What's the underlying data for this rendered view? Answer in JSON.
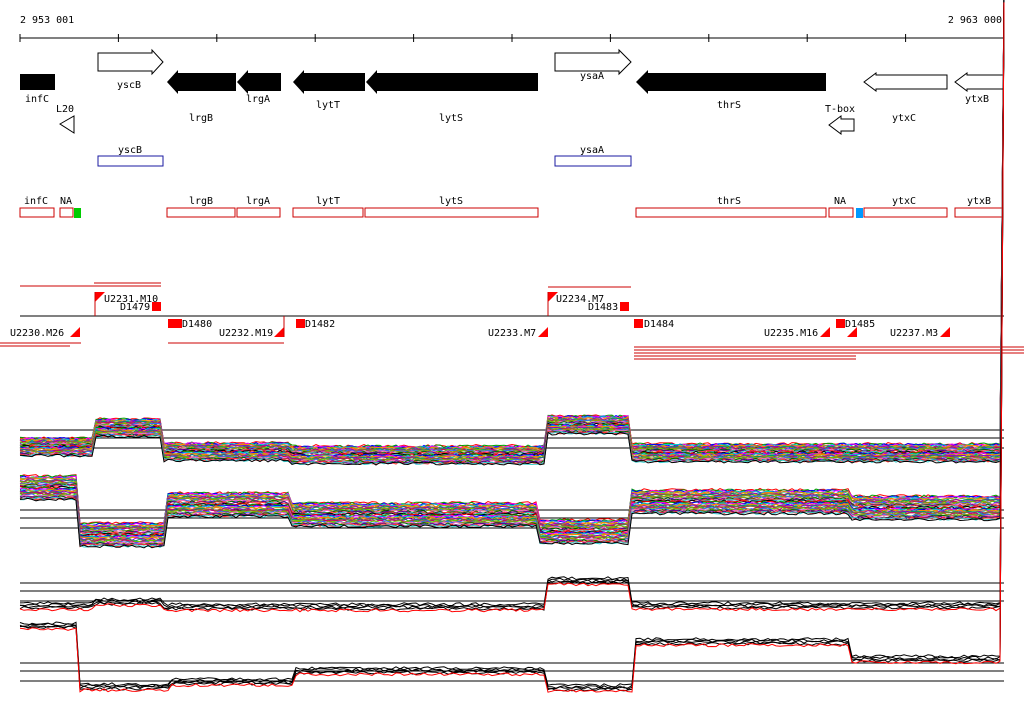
{
  "ruler": {
    "start_label": "2 953 001",
    "end_label": "2 963 000"
  },
  "genes_forward": [
    {
      "name": "yscB",
      "label": "yscB"
    },
    {
      "name": "ysaA",
      "label": "ysaA"
    }
  ],
  "genes_reverse": [
    {
      "name": "infC",
      "label": "infC",
      "style": "filled"
    },
    {
      "name": "lrgB",
      "label": "lrgB",
      "style": "filled"
    },
    {
      "name": "lrgA",
      "label": "lrgA",
      "style": "filled"
    },
    {
      "name": "lytT",
      "label": "lytT",
      "style": "filled"
    },
    {
      "name": "lytS",
      "label": "lytS",
      "style": "filled"
    },
    {
      "name": "thrS",
      "label": "thrS",
      "style": "filled"
    },
    {
      "name": "ytxC",
      "label": "ytxC",
      "style": "outline"
    },
    {
      "name": "ytxB",
      "label": "ytxB",
      "style": "outline"
    }
  ],
  "elements": [
    {
      "name": "L20",
      "label": "L20"
    },
    {
      "name": "T-box",
      "label": "T-box"
    }
  ],
  "blue_annotations": [
    {
      "name": "yscB",
      "label": "yscB"
    },
    {
      "name": "ysaA",
      "label": "ysaA"
    }
  ],
  "red_annotations": [
    {
      "name": "infC",
      "label": "infC"
    },
    {
      "name": "NA-1",
      "label": "NA"
    },
    {
      "name": "lrgB",
      "label": "lrgB"
    },
    {
      "name": "lrgA",
      "label": "lrgA"
    },
    {
      "name": "lytT",
      "label": "lytT"
    },
    {
      "name": "lytS",
      "label": "lytS"
    },
    {
      "name": "thrS",
      "label": "thrS"
    },
    {
      "name": "NA-2",
      "label": "NA"
    },
    {
      "name": "ytxC",
      "label": "ytxC"
    },
    {
      "name": "ytxB",
      "label": "ytxB"
    }
  ],
  "annotation_colors": {
    "red_box": "#cc0000",
    "blue_box": "#1a1aa0",
    "green_mark": "#00cc00",
    "cyan_mark": "#0099ff"
  },
  "transcription_units": [
    {
      "name": "U2230.M26",
      "label": "U2230.M26"
    },
    {
      "name": "U2231.M10",
      "label": "U2231.M10"
    },
    {
      "name": "U2232.M19",
      "label": "U2232.M19"
    },
    {
      "name": "U2233.M7",
      "label": "U2233.M7"
    },
    {
      "name": "U2234.M7",
      "label": "U2234.M7"
    },
    {
      "name": "U2235.M16",
      "label": "U2235.M16"
    },
    {
      "name": "U2237.M3",
      "label": "U2237.M3"
    }
  ],
  "downshifts": [
    {
      "name": "D1479",
      "label": "D1479"
    },
    {
      "name": "D1480",
      "label": "D1480"
    },
    {
      "name": "D1482",
      "label": "D1482"
    },
    {
      "name": "D1483",
      "label": "D1483"
    },
    {
      "name": "D1484",
      "label": "D1484"
    },
    {
      "name": "D1485",
      "label": "D1485"
    }
  ],
  "condition_colors": [
    "#ff0000",
    "#00a000",
    "#0000ff",
    "#ff00ff",
    "#00cccc",
    "#cc9900",
    "#ff8800",
    "#8800cc",
    "#009966",
    "#996633",
    "#cc0066",
    "#66cc00",
    "#3366ff",
    "#999900",
    "#ff66cc",
    "#006600",
    "#660099",
    "#ff3333",
    "#33cccc",
    "#000000"
  ]
}
